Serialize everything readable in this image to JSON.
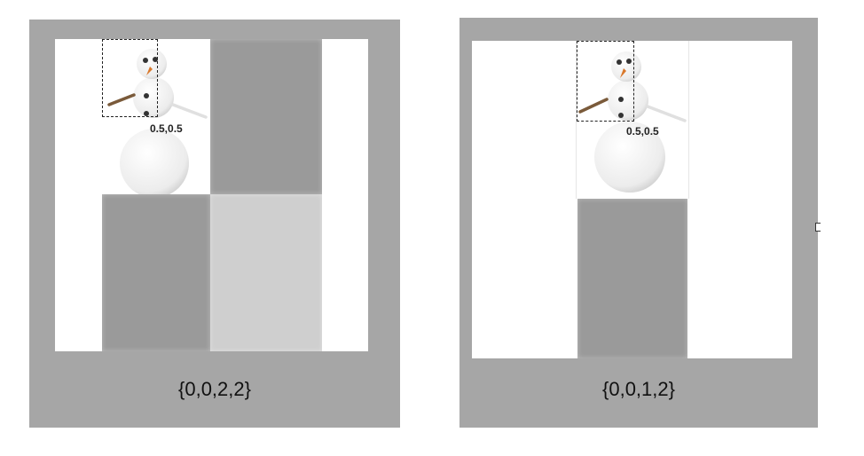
{
  "panels": [
    {
      "id": "left",
      "caption": "{0,0,2,2}",
      "point_label": "0.5,0.5"
    },
    {
      "id": "right",
      "caption": "{0,0,1,2}",
      "point_label": "0.5,0.5"
    }
  ],
  "icons": [
    "snowman-icon"
  ],
  "colors": {
    "frame": "#a6a6a6",
    "dark_tile": "#9a9a9a",
    "light_tile": "#cfcfcf",
    "carrot": "#d9782b",
    "arm": "#7a5a3a"
  }
}
